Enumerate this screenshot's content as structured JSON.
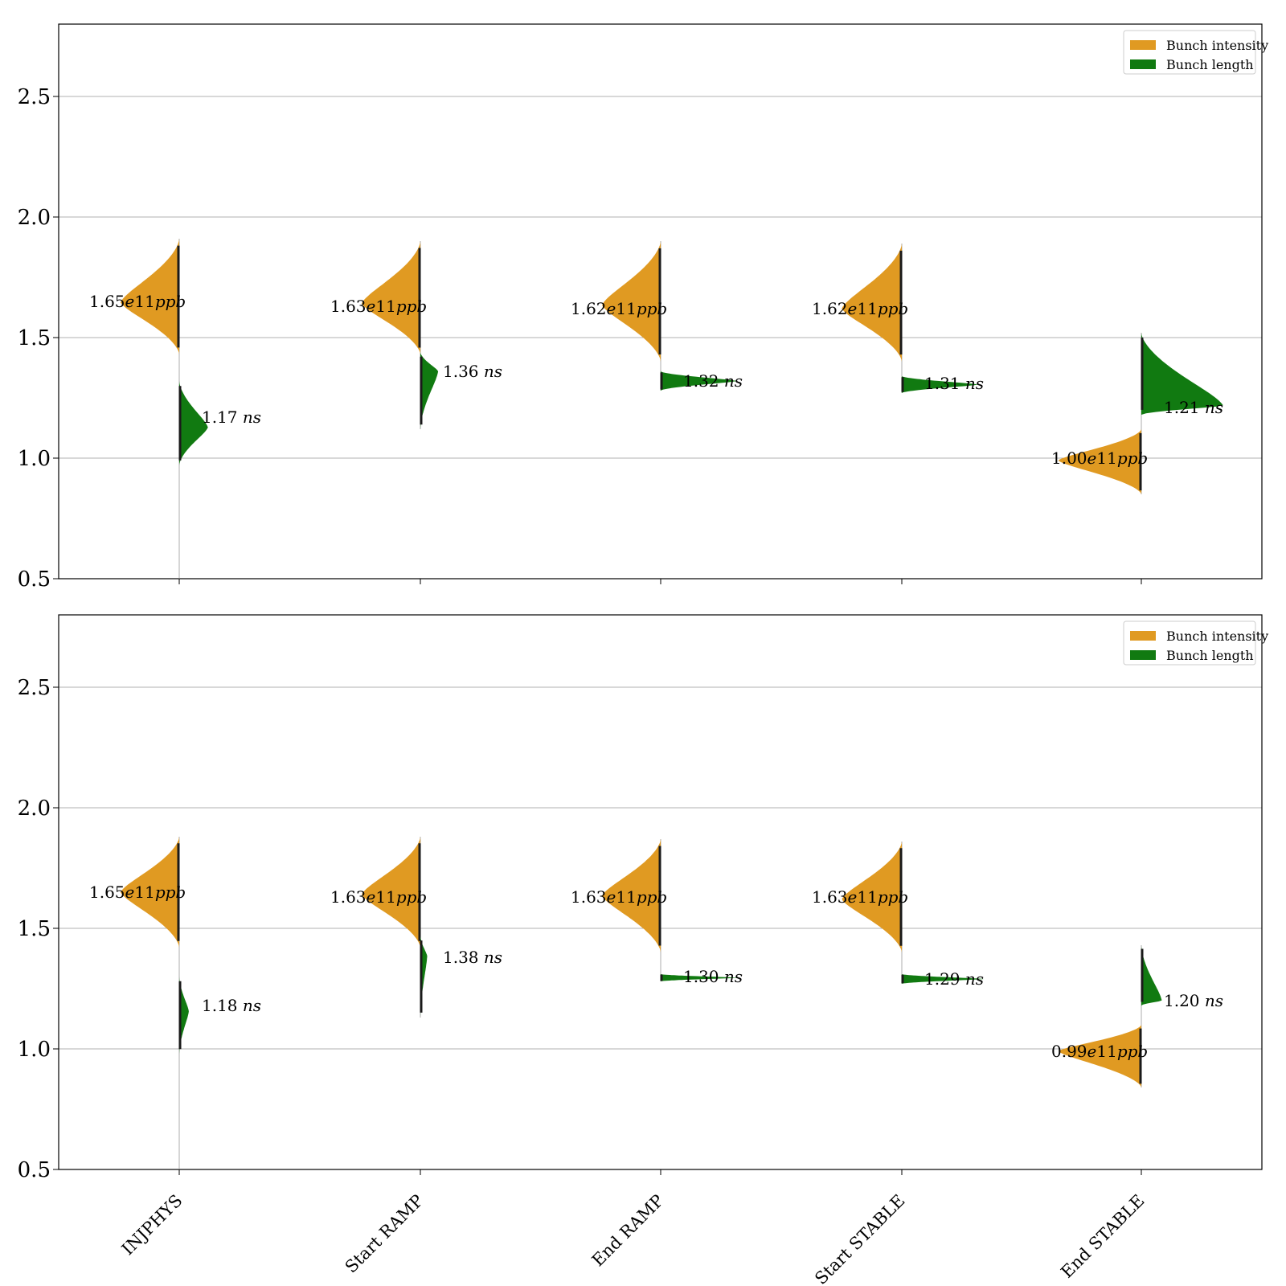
{
  "chart_data": [
    {
      "type": "violin",
      "panel": "top",
      "categories": [
        "INJPHYS",
        "Start RAMP",
        "End RAMP",
        "Start STABLE",
        "End STABLE"
      ],
      "ylim": [
        0.5,
        2.8
      ],
      "yticks": [
        "0.5",
        "1.0",
        "1.5",
        "2.0",
        "2.5"
      ],
      "grid": "horizontal",
      "legend_position": "top-right",
      "series": [
        {
          "name": "Bunch intensity",
          "color": "#e09a22",
          "side": "left",
          "medians": [
            1.65,
            1.63,
            1.62,
            1.62,
            1.0
          ],
          "ranges": [
            [
              1.43,
              1.91
            ],
            [
              1.43,
              1.9
            ],
            [
              1.4,
              1.9
            ],
            [
              1.4,
              1.89
            ],
            [
              0.85,
              1.12
            ]
          ],
          "annotations": [
            "1.65e11ppb",
            "1.63e11ppb",
            "1.62e11ppb",
            "1.62e11ppb",
            "1.00e11ppb"
          ]
        },
        {
          "name": "Bunch length",
          "color": "#117a11",
          "side": "right",
          "medians": [
            1.17,
            1.36,
            1.32,
            1.31,
            1.21
          ],
          "ranges": [
            [
              0.97,
              1.32
            ],
            [
              1.12,
              1.44
            ],
            [
              1.28,
              1.36
            ],
            [
              1.27,
              1.34
            ],
            [
              1.18,
              1.52
            ]
          ],
          "annotations": [
            "1.17 ns",
            "1.36 ns",
            "1.32 ns",
            "1.31 ns",
            "1.21 ns"
          ]
        }
      ]
    },
    {
      "type": "violin",
      "panel": "bottom",
      "categories": [
        "INJPHYS",
        "Start RAMP",
        "End RAMP",
        "Start STABLE",
        "End STABLE"
      ],
      "ylim": [
        0.5,
        2.8
      ],
      "yticks": [
        "0.5",
        "1.0",
        "1.5",
        "2.0",
        "2.5"
      ],
      "grid": "horizontal",
      "legend_position": "top-right",
      "series": [
        {
          "name": "Bunch intensity",
          "color": "#e09a22",
          "side": "left",
          "medians": [
            1.65,
            1.63,
            1.63,
            1.63,
            0.99
          ],
          "ranges": [
            [
              1.42,
              1.88
            ],
            [
              1.42,
              1.88
            ],
            [
              1.4,
              1.87
            ],
            [
              1.4,
              1.86
            ],
            [
              0.84,
              1.1
            ]
          ],
          "annotations": [
            "1.65e11ppb",
            "1.63e11ppb",
            "1.63e11ppb",
            "1.63e11ppb",
            "0.99e11ppb"
          ]
        },
        {
          "name": "Bunch length",
          "color": "#117a11",
          "side": "right",
          "medians": [
            1.18,
            1.38,
            1.3,
            1.29,
            1.2
          ],
          "ranges": [
            [
              0.98,
              1.3
            ],
            [
              1.13,
              1.47
            ],
            [
              1.28,
              1.31
            ],
            [
              1.27,
              1.31
            ],
            [
              1.18,
              1.43
            ]
          ],
          "annotations": [
            "1.18 ns",
            "1.38 ns",
            "1.30 ns",
            "1.29 ns",
            "1.20 ns"
          ]
        }
      ]
    }
  ]
}
